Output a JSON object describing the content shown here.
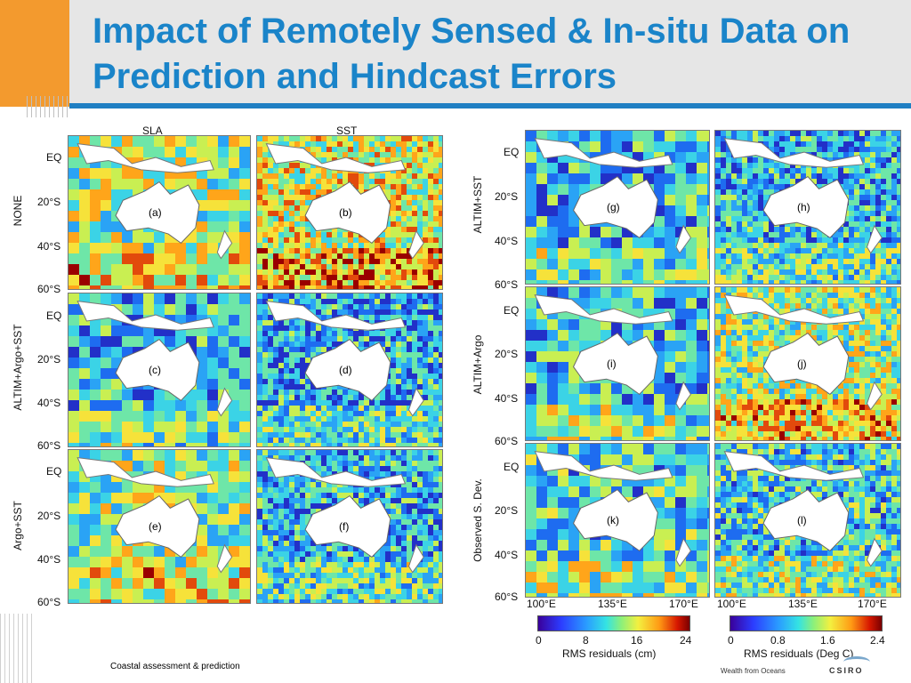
{
  "slide": {
    "title": "Impact of Remotely Sensed & In-situ Data on Prediction and Hindcast Errors",
    "footer": "Coastal assessment & prediction",
    "brand_tagline": "Wealth from Oceans",
    "brand": "CSIRO"
  },
  "figure": {
    "left_columns": [
      "SLA",
      "SST"
    ],
    "left_rows": [
      "NONE",
      "ALTIM+Argo+SST",
      "Argo+SST"
    ],
    "right_rows": [
      "ALTIM+SST",
      "ALTIM+Argo",
      "Observed S. Dev."
    ],
    "lat_ticks": [
      "EQ",
      "20°S",
      "40°S",
      "60°S"
    ],
    "lon_ticks": [
      "100°E",
      "135°E",
      "170°E"
    ],
    "panels": [
      {
        "id": "a",
        "label": "(a)",
        "error_level": 0.72
      },
      {
        "id": "b",
        "label": "(b)",
        "error_level": 0.85
      },
      {
        "id": "c",
        "label": "(c)",
        "error_level": 0.3
      },
      {
        "id": "d",
        "label": "(d)",
        "error_level": 0.25
      },
      {
        "id": "e",
        "label": "(e)",
        "error_level": 0.65
      },
      {
        "id": "f",
        "label": "(f)",
        "error_level": 0.28
      },
      {
        "id": "g",
        "label": "(g)",
        "error_level": 0.32
      },
      {
        "id": "h",
        "label": "(h)",
        "error_level": 0.28
      },
      {
        "id": "i",
        "label": "(i)",
        "error_level": 0.35
      },
      {
        "id": "j",
        "label": "(j)",
        "error_level": 0.7
      },
      {
        "id": "k",
        "label": "(k)",
        "error_level": 0.42
      },
      {
        "id": "l",
        "label": "(l)",
        "error_level": 0.4
      }
    ],
    "colorbars": [
      {
        "ticks": [
          "0",
          "8",
          "16",
          "24"
        ],
        "label": "RMS residuals (cm)"
      },
      {
        "ticks": [
          "0",
          "0.8",
          "1.6",
          "2.4"
        ],
        "label": "RMS residuals (Deg C)"
      }
    ]
  }
}
